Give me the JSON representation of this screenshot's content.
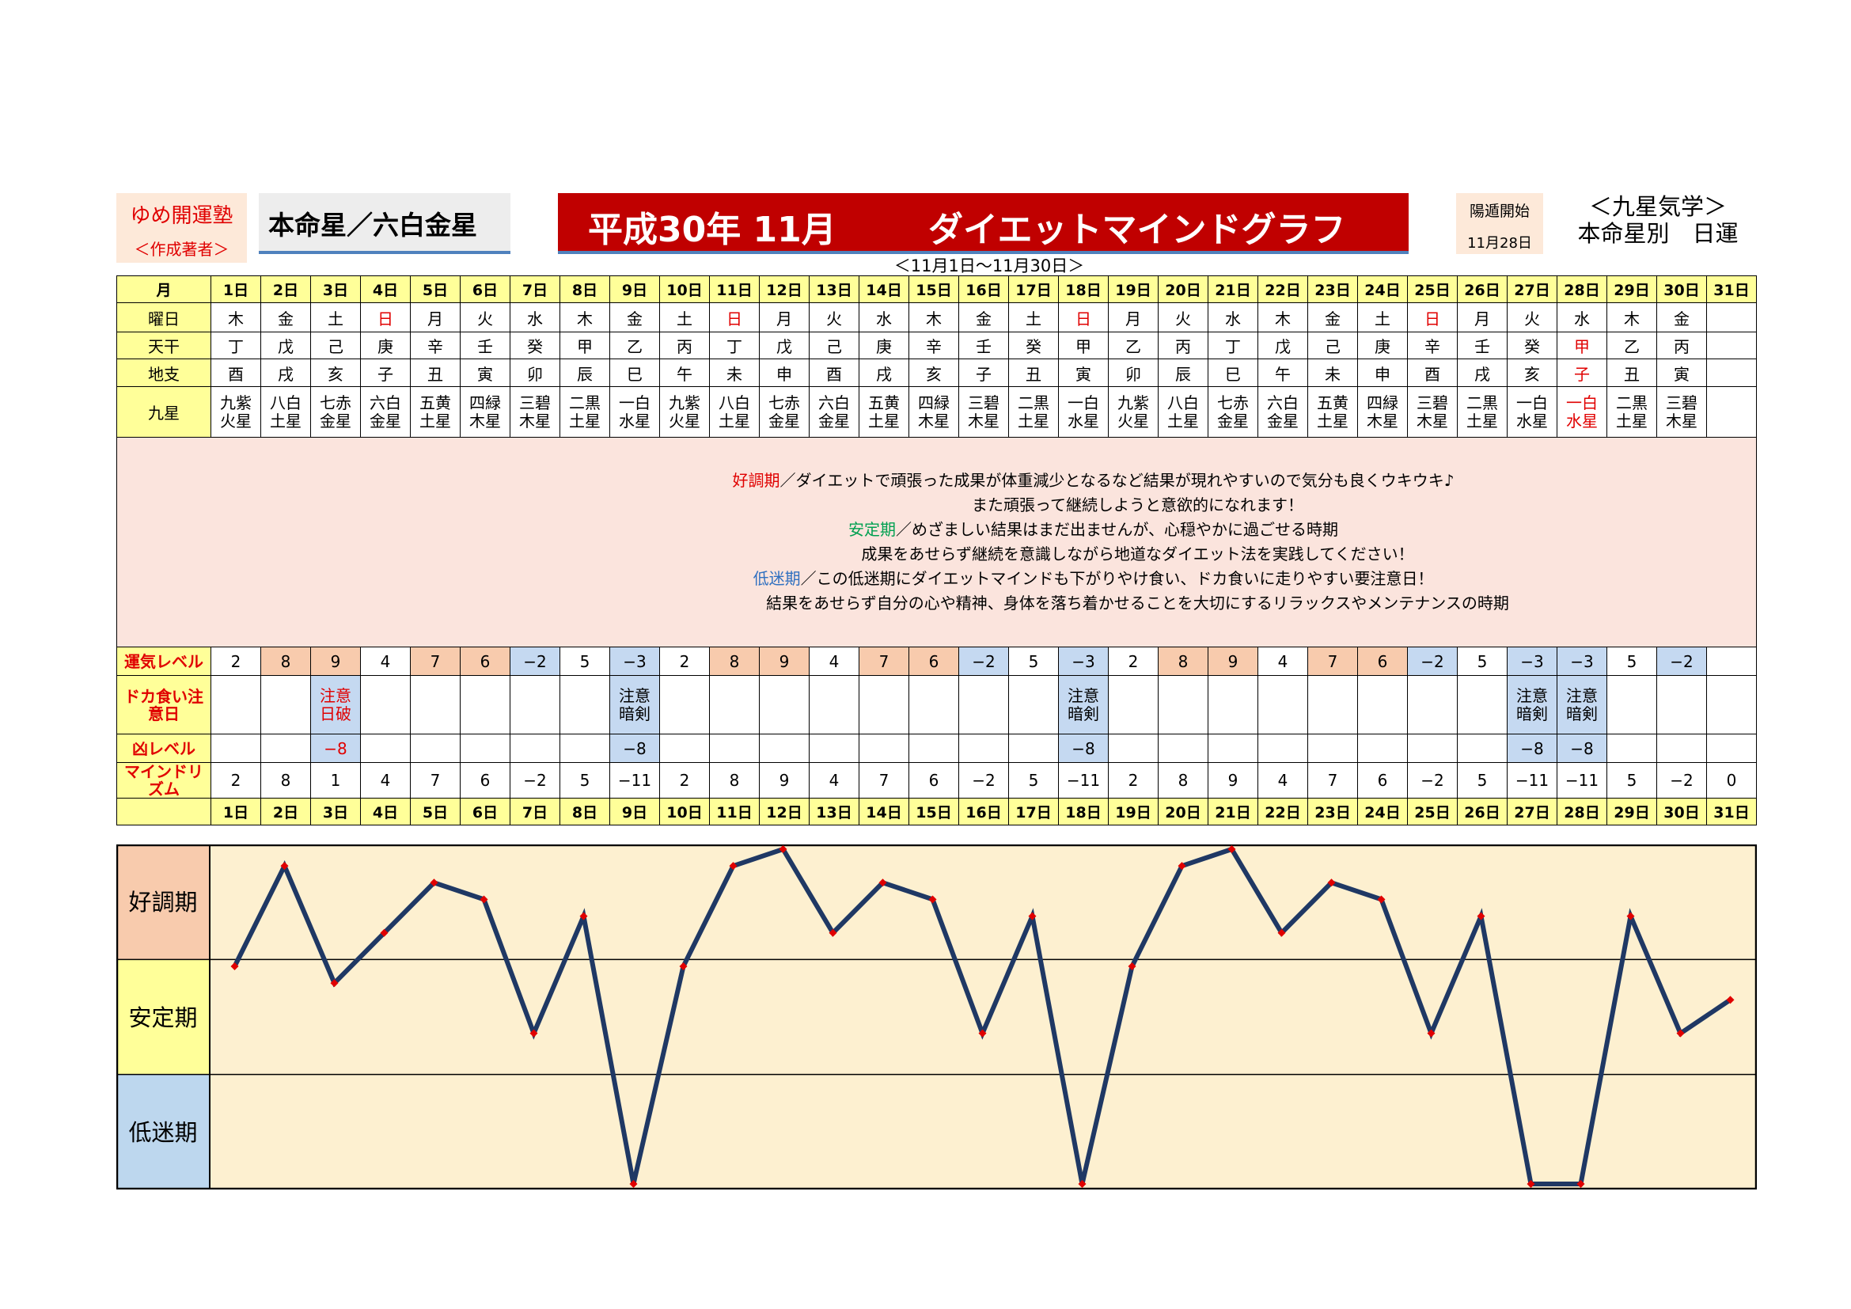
{
  "header": {
    "author_name": "ゆめ開運塾",
    "author_role": "＜作成著者＞",
    "honmei": "本命星／六白金星",
    "title_left": "平成30年 11月",
    "title_right": "ダイエットマインドグラフ",
    "period": "＜11月1日～11月30日＞",
    "yoton_label": "陽遁開始",
    "yoton_date": "11月28日",
    "kyusei_title": "＜九星気学＞",
    "kyusei_sub": "本命星別　日運"
  },
  "row_labels": {
    "month": "月",
    "weekday": "曜日",
    "tenkan": "天干",
    "chishi": "地支",
    "kyusei": "九星",
    "luck": "運気レベル",
    "doka": "ドカ食い注意日",
    "kyo": "凶レベル",
    "mind": "マインドリズム"
  },
  "days": [
    "1日",
    "2日",
    "3日",
    "4日",
    "5日",
    "6日",
    "7日",
    "8日",
    "9日",
    "10日",
    "11日",
    "12日",
    "13日",
    "14日",
    "15日",
    "16日",
    "17日",
    "18日",
    "19日",
    "20日",
    "21日",
    "22日",
    "23日",
    "24日",
    "25日",
    "26日",
    "27日",
    "28日",
    "29日",
    "30日",
    "31日"
  ],
  "weekdays": [
    "木",
    "金",
    "土",
    "日",
    "月",
    "火",
    "水",
    "木",
    "金",
    "土",
    "日",
    "月",
    "火",
    "水",
    "木",
    "金",
    "土",
    "日",
    "月",
    "火",
    "水",
    "木",
    "金",
    "土",
    "日",
    "月",
    "火",
    "水",
    "木",
    "金",
    ""
  ],
  "tenkan": [
    "丁",
    "戊",
    "己",
    "庚",
    "辛",
    "壬",
    "癸",
    "甲",
    "乙",
    "丙",
    "丁",
    "戊",
    "己",
    "庚",
    "辛",
    "壬",
    "癸",
    "甲",
    "乙",
    "丙",
    "丁",
    "戊",
    "己",
    "庚",
    "辛",
    "壬",
    "癸",
    "甲",
    "乙",
    "丙",
    ""
  ],
  "chishi": [
    "酉",
    "戌",
    "亥",
    "子",
    "丑",
    "寅",
    "卯",
    "辰",
    "巳",
    "午",
    "未",
    "申",
    "酉",
    "戌",
    "亥",
    "子",
    "丑",
    "寅",
    "卯",
    "辰",
    "巳",
    "午",
    "未",
    "申",
    "酉",
    "戌",
    "亥",
    "子",
    "丑",
    "寅",
    ""
  ],
  "kyusei_top": [
    "九紫",
    "八白",
    "七赤",
    "六白",
    "五黄",
    "四緑",
    "三碧",
    "二黒",
    "一白",
    "九紫",
    "八白",
    "七赤",
    "六白",
    "五黄",
    "四緑",
    "三碧",
    "二黒",
    "一白",
    "九紫",
    "八白",
    "七赤",
    "六白",
    "五黄",
    "四緑",
    "三碧",
    "二黒",
    "一白",
    "一白",
    "二黒",
    "三碧",
    ""
  ],
  "kyusei_bottom": [
    "火星",
    "土星",
    "金星",
    "金星",
    "土星",
    "木星",
    "木星",
    "土星",
    "水星",
    "火星",
    "土星",
    "金星",
    "金星",
    "土星",
    "木星",
    "木星",
    "土星",
    "水星",
    "火星",
    "土星",
    "金星",
    "金星",
    "土星",
    "木星",
    "木星",
    "土星",
    "水星",
    "水星",
    "土星",
    "木星",
    ""
  ],
  "description": {
    "good_label": "好調期",
    "good_line1": "／ダイエットで頑張った成果が体重減少となるなど結果が現れやすいので気分も良くウキウキ♪",
    "good_line2": "また頑張って継続しようと意欲的になれます！",
    "stable_label": "安定期",
    "stable_line1": "／めざましい結果はまだ出ませんが、心穏やかに過ごせる時期",
    "stable_line2": "成果をあせらず継続を意識しながら地道なダイエット法を実践してください！",
    "low_label": "低迷期",
    "low_line1": "／この低迷期にダイエットマインドも下がりやけ食い、ドカ食いに走りやすい要注意日！",
    "low_line2": "結果をあせらず自分の心や精神、身体を落ち着かせることを大切にするリラックスやメンテナンスの時期"
  },
  "luck_level": [
    "2",
    "8",
    "9",
    "4",
    "7",
    "6",
    "−2",
    "5",
    "−3",
    "2",
    "8",
    "9",
    "4",
    "7",
    "6",
    "−2",
    "5",
    "−3",
    "2",
    "8",
    "9",
    "4",
    "7",
    "6",
    "−2",
    "5",
    "−3",
    "−3",
    "5",
    "−2",
    ""
  ],
  "doka_top": [
    "",
    "",
    "注意",
    "",
    "",
    "",
    "",
    "",
    "注意",
    "",
    "",
    "",
    "",
    "",
    "",
    "",
    "",
    "注意",
    "",
    "",
    "",
    "",
    "",
    "",
    "",
    "",
    "注意",
    "注意",
    "",
    "",
    ""
  ],
  "doka_bottom": [
    "",
    "",
    "日破",
    "",
    "",
    "",
    "",
    "",
    "暗剣",
    "",
    "",
    "",
    "",
    "",
    "",
    "",
    "",
    "暗剣",
    "",
    "",
    "",
    "",
    "",
    "",
    "",
    "",
    "暗剣",
    "暗剣",
    "",
    "",
    ""
  ],
  "kyo_level": [
    "",
    "",
    "−8",
    "",
    "",
    "",
    "",
    "",
    "−8",
    "",
    "",
    "",
    "",
    "",
    "",
    "",
    "",
    "−8",
    "",
    "",
    "",
    "",
    "",
    "",
    "",
    "",
    "−8",
    "−8",
    "",
    "",
    ""
  ],
  "mind_rhythm": [
    "2",
    "8",
    "1",
    "4",
    "7",
    "6",
    "−2",
    "5",
    "−11",
    "2",
    "8",
    "9",
    "4",
    "7",
    "6",
    "−2",
    "5",
    "−11",
    "2",
    "8",
    "9",
    "4",
    "7",
    "6",
    "−2",
    "5",
    "−11",
    "−11",
    "5",
    "−2",
    "0"
  ],
  "zones": {
    "good": "好調期",
    "stable": "安定期",
    "low": "低迷期"
  },
  "colors": {
    "title_red": "#c00000",
    "line_navy": "#1f3864",
    "marker_red": "#e00000",
    "graph_bg": "#fdf0d0",
    "good_bg": "#f8cbad",
    "stable_bg": "#ffff99",
    "low_bg": "#bdd7ee"
  },
  "chart_data": {
    "type": "line",
    "categories": [
      "1日",
      "2日",
      "3日",
      "4日",
      "5日",
      "6日",
      "7日",
      "8日",
      "9日",
      "10日",
      "11日",
      "12日",
      "13日",
      "14日",
      "15日",
      "16日",
      "17日",
      "18日",
      "19日",
      "20日",
      "21日",
      "22日",
      "23日",
      "24日",
      "25日",
      "26日",
      "27日",
      "28日",
      "29日",
      "30日",
      "31日"
    ],
    "series": [
      {
        "values": [
          2,
          8,
          1,
          4,
          7,
          6,
          -2,
          5,
          -11,
          2,
          8,
          9,
          4,
          7,
          6,
          -2,
          5,
          -11,
          2,
          8,
          9,
          4,
          7,
          6,
          -2,
          5,
          -11,
          -11,
          5,
          -2,
          0
        ]
      }
    ],
    "title": "",
    "xlabel": "",
    "ylabel": "",
    "ylim": [
      -11,
      9
    ],
    "bands": [
      "好調期",
      "安定期",
      "低迷期"
    ],
    "grid": false
  }
}
